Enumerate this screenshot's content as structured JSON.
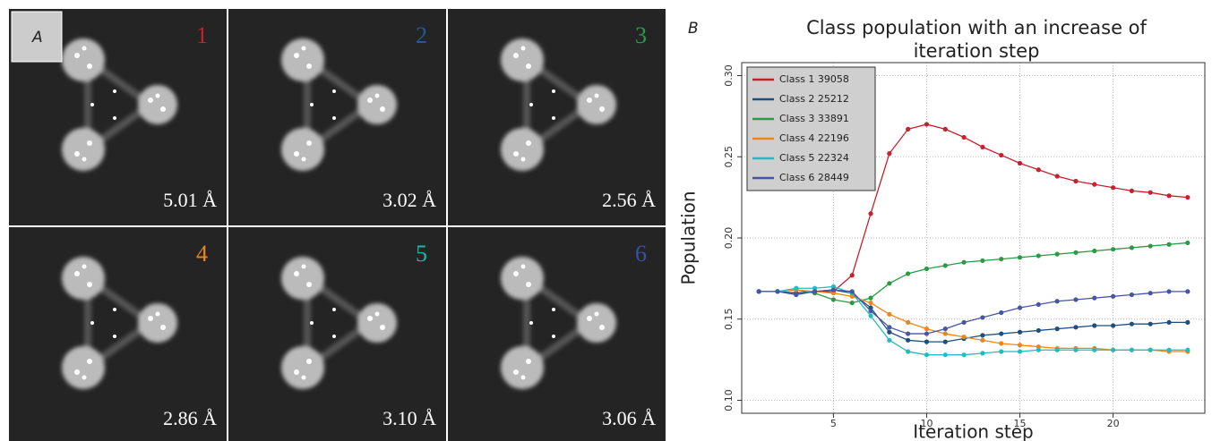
{
  "panel_a": {
    "label": "A",
    "tiles": [
      {
        "number": "1",
        "color": "#c8202c",
        "resolution": "5.01 Å"
      },
      {
        "number": "2",
        "color": "#1d5c9c",
        "resolution": "3.02 Å"
      },
      {
        "number": "3",
        "color": "#2a9a44",
        "resolution": "2.56 Å"
      },
      {
        "number": "4",
        "color": "#f0841c",
        "resolution": "2.86 Å"
      },
      {
        "number": "5",
        "color": "#1ab8b0",
        "resolution": "3.10 Å"
      },
      {
        "number": "6",
        "color": "#3a4fa6",
        "resolution": "3.06 Å"
      }
    ]
  },
  "panel_label": "B",
  "chart_data": {
    "type": "line",
    "title": "Class population with an increase of iteration step",
    "x_label": "Iteration step",
    "y_label": "Population",
    "x": [
      1,
      2,
      3,
      4,
      5,
      6,
      7,
      8,
      9,
      10,
      11,
      12,
      13,
      14,
      15,
      16,
      17,
      18,
      19,
      20,
      21,
      22,
      23,
      24
    ],
    "xlim": [
      0.08,
      24.92
    ],
    "xticks": [
      5,
      10,
      15,
      20
    ],
    "ylim": [
      0.092,
      0.308
    ],
    "yticks": [
      {
        "value": 0.1,
        "label": "0.10"
      },
      {
        "value": 0.15,
        "label": "0.15"
      },
      {
        "value": 0.2,
        "label": "0.20"
      },
      {
        "value": 0.25,
        "label": "0.25"
      },
      {
        "value": 0.3,
        "label": "0.30"
      }
    ],
    "grid": true,
    "legend": "top-left",
    "series": [
      {
        "name": "Class 1 39058",
        "color": "#c8202c",
        "values": [
          0.167,
          0.167,
          0.166,
          0.167,
          0.167,
          0.177,
          0.215,
          0.252,
          0.267,
          0.27,
          0.267,
          0.262,
          0.256,
          0.251,
          0.246,
          0.242,
          0.238,
          0.235,
          0.233,
          0.231,
          0.229,
          0.228,
          0.226,
          0.225
        ]
      },
      {
        "name": "Class 2 25212",
        "color": "#1d4f7e",
        "values": [
          0.167,
          0.167,
          0.166,
          0.167,
          0.168,
          0.166,
          0.157,
          0.142,
          0.137,
          0.136,
          0.136,
          0.138,
          0.14,
          0.141,
          0.142,
          0.143,
          0.144,
          0.145,
          0.146,
          0.146,
          0.147,
          0.147,
          0.148,
          0.148
        ]
      },
      {
        "name": "Class 3 33891",
        "color": "#2a9a44",
        "values": [
          0.167,
          0.167,
          0.168,
          0.166,
          0.162,
          0.16,
          0.163,
          0.172,
          0.178,
          0.181,
          0.183,
          0.185,
          0.186,
          0.187,
          0.188,
          0.189,
          0.19,
          0.191,
          0.192,
          0.193,
          0.194,
          0.195,
          0.196,
          0.197
        ]
      },
      {
        "name": "Class 4 22196",
        "color": "#f0841c",
        "values": [
          0.167,
          0.167,
          0.168,
          0.167,
          0.166,
          0.164,
          0.16,
          0.153,
          0.148,
          0.144,
          0.141,
          0.139,
          0.137,
          0.135,
          0.134,
          0.133,
          0.132,
          0.132,
          0.132,
          0.131,
          0.131,
          0.131,
          0.13,
          0.13
        ]
      },
      {
        "name": "Class 5 22324",
        "color": "#22bcc0",
        "values": [
          0.167,
          0.167,
          0.169,
          0.169,
          0.17,
          0.166,
          0.152,
          0.137,
          0.13,
          0.128,
          0.128,
          0.128,
          0.129,
          0.13,
          0.13,
          0.131,
          0.131,
          0.131,
          0.131,
          0.131,
          0.131,
          0.131,
          0.131,
          0.131
        ]
      },
      {
        "name": "Class 6 28449",
        "color": "#4656a6",
        "values": [
          0.167,
          0.167,
          0.165,
          0.167,
          0.168,
          0.167,
          0.155,
          0.145,
          0.141,
          0.141,
          0.144,
          0.148,
          0.151,
          0.154,
          0.157,
          0.159,
          0.161,
          0.162,
          0.163,
          0.164,
          0.165,
          0.166,
          0.167,
          0.167
        ]
      }
    ]
  }
}
